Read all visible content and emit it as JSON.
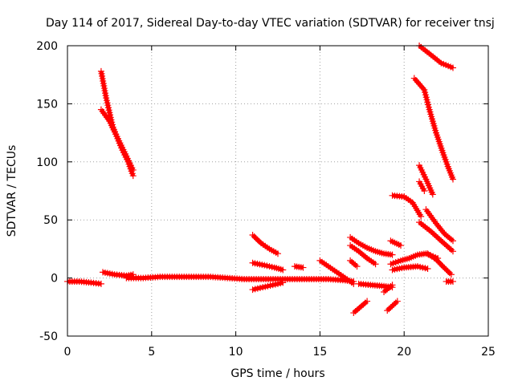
{
  "chart_data": {
    "type": "scatter",
    "title": "Day 114 of 2017, Sidereal Day-to-day VTEC variation (SDTVAR) for receiver tnsj",
    "xlabel": "GPS time / hours",
    "ylabel": "SDTVAR / TECUs",
    "xlim": [
      0,
      25
    ],
    "ylim": [
      -50,
      200
    ],
    "xticks": [
      "0",
      "5",
      "10",
      "15",
      "20",
      "25"
    ],
    "yticks": [
      "-50",
      "0",
      "50",
      "100",
      "150",
      "200"
    ],
    "grid": true,
    "color": "#ff0000",
    "marker": "plus",
    "tracks": [
      {
        "x": [
          0.0,
          0.7,
          1.4,
          2.0
        ],
        "y": [
          -3,
          -3,
          -4,
          -5
        ]
      },
      {
        "x": [
          2.0,
          2.3,
          2.7,
          3.2,
          3.6,
          3.9
        ],
        "y": [
          178,
          155,
          130,
          112,
          100,
          88
        ]
      },
      {
        "x": [
          2.0,
          2.5,
          3.0,
          3.5,
          3.9
        ],
        "y": [
          145,
          135,
          120,
          105,
          93
        ]
      },
      {
        "x": [
          2.1,
          2.8,
          3.5,
          3.9
        ],
        "y": [
          5,
          3,
          2,
          3
        ]
      },
      {
        "x": [
          3.5,
          4.5,
          5.5,
          6.5,
          7.5,
          8.5,
          9.5,
          10.5,
          11.5,
          12.5,
          13.5,
          14.5,
          15.5,
          16.5,
          17.0
        ],
        "y": [
          0,
          0,
          1,
          1,
          1,
          1,
          0,
          -1,
          -1,
          -1,
          -1,
          -1,
          -1,
          -2,
          -3
        ]
      },
      {
        "x": [
          11.0,
          11.5,
          12.0,
          12.5
        ],
        "y": [
          37,
          30,
          25,
          21
        ]
      },
      {
        "x": [
          11.0,
          11.7,
          12.3,
          12.8
        ],
        "y": [
          13,
          11,
          9,
          7
        ]
      },
      {
        "x": [
          11.0,
          11.6,
          12.2,
          12.8
        ],
        "y": [
          -10,
          -8,
          -6,
          -4
        ]
      },
      {
        "x": [
          13.5,
          14.0
        ],
        "y": [
          10,
          9
        ]
      },
      {
        "x": [
          15.0,
          15.5,
          16.0,
          16.5,
          17.0
        ],
        "y": [
          15,
          10,
          5,
          0,
          -5
        ]
      },
      {
        "x": [
          16.8,
          17.3,
          17.8,
          18.3,
          18.8,
          19.3
        ],
        "y": [
          35,
          30,
          26,
          23,
          21,
          20
        ]
      },
      {
        "x": [
          16.8,
          17.3,
          17.8,
          18.3
        ],
        "y": [
          28,
          23,
          17,
          12
        ]
      },
      {
        "x": [
          16.8,
          17.2
        ],
        "y": [
          15,
          10
        ]
      },
      {
        "x": [
          17.0,
          17.8
        ],
        "y": [
          -30,
          -20
        ]
      },
      {
        "x": [
          17.3,
          18.0,
          18.8,
          19.3
        ],
        "y": [
          -5,
          -6,
          -7,
          -8
        ]
      },
      {
        "x": [
          18.8,
          19.3
        ],
        "y": [
          -12,
          -6
        ]
      },
      {
        "x": [
          19.0,
          19.6
        ],
        "y": [
          -28,
          -20
        ]
      },
      {
        "x": [
          19.2,
          19.8
        ],
        "y": [
          32,
          28
        ]
      },
      {
        "x": [
          19.2,
          19.8,
          20.3,
          20.8,
          21.3,
          22.0
        ],
        "y": [
          12,
          15,
          17,
          20,
          21,
          17
        ]
      },
      {
        "x": [
          19.3,
          20.0,
          20.8,
          21.4
        ],
        "y": [
          7,
          9,
          10,
          8
        ]
      },
      {
        "x": [
          19.3,
          20.0
        ],
        "y": [
          71,
          70
        ]
      },
      {
        "x": [
          20.0,
          20.5,
          21.0
        ],
        "y": [
          70,
          65,
          53
        ]
      },
      {
        "x": [
          20.6,
          21.2,
          21.5,
          21.9,
          22.3,
          22.6,
          22.9
        ],
        "y": [
          172,
          162,
          145,
          125,
          108,
          96,
          85
        ]
      },
      {
        "x": [
          20.9,
          21.6,
          22.2,
          22.9
        ],
        "y": [
          200,
          192,
          185,
          181
        ]
      },
      {
        "x": [
          20.9,
          21.3,
          21.7
        ],
        "y": [
          97,
          85,
          72
        ]
      },
      {
        "x": [
          20.9,
          21.2
        ],
        "y": [
          83,
          75
        ]
      },
      {
        "x": [
          21.3,
          21.9,
          22.4,
          22.9
        ],
        "y": [
          59,
          47,
          38,
          32
        ]
      },
      {
        "x": [
          20.9,
          21.6,
          22.2,
          22.9
        ],
        "y": [
          48,
          40,
          32,
          23
        ]
      },
      {
        "x": [
          21.4,
          21.9,
          22.3,
          22.8
        ],
        "y": [
          21,
          16,
          10,
          3
        ]
      },
      {
        "x": [
          22.5,
          22.9
        ],
        "y": [
          -3,
          -3
        ]
      }
    ]
  }
}
